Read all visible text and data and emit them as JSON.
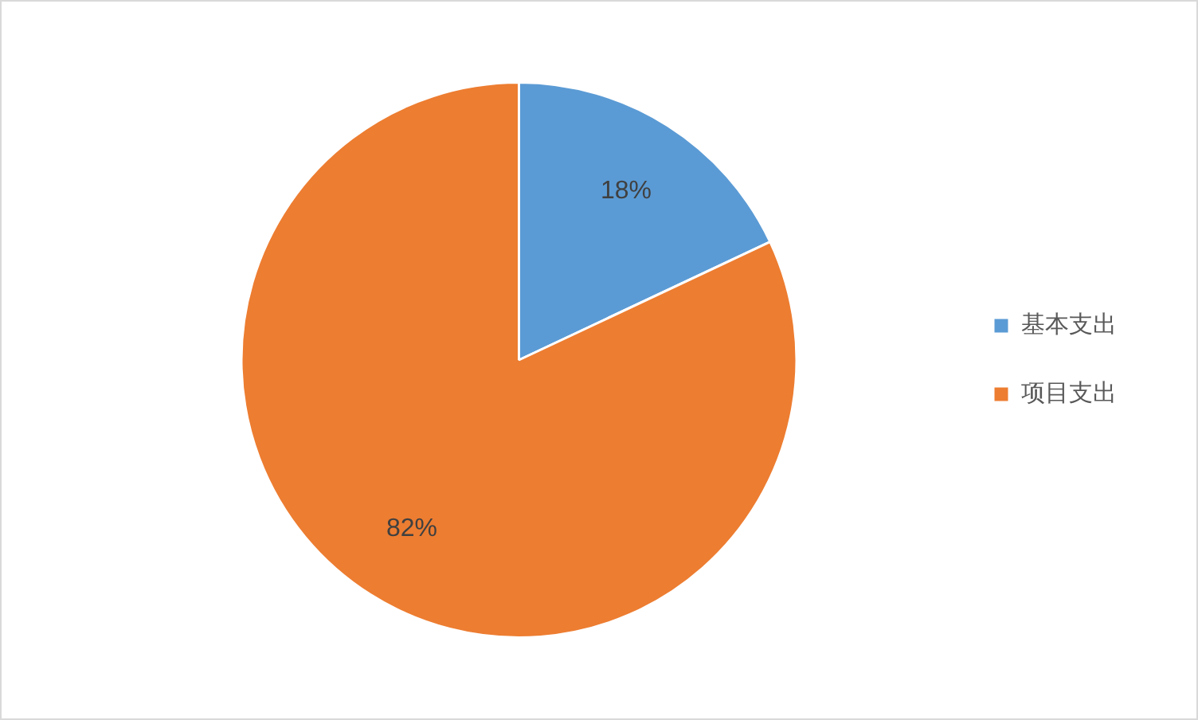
{
  "chart_data": {
    "type": "pie",
    "categories": [
      "基本支出",
      "项目支出"
    ],
    "values": [
      18,
      82
    ],
    "colors": [
      "#5b9bd5",
      "#ed7d31"
    ],
    "value_labels": [
      "18%",
      "82%"
    ],
    "legend": "right"
  }
}
